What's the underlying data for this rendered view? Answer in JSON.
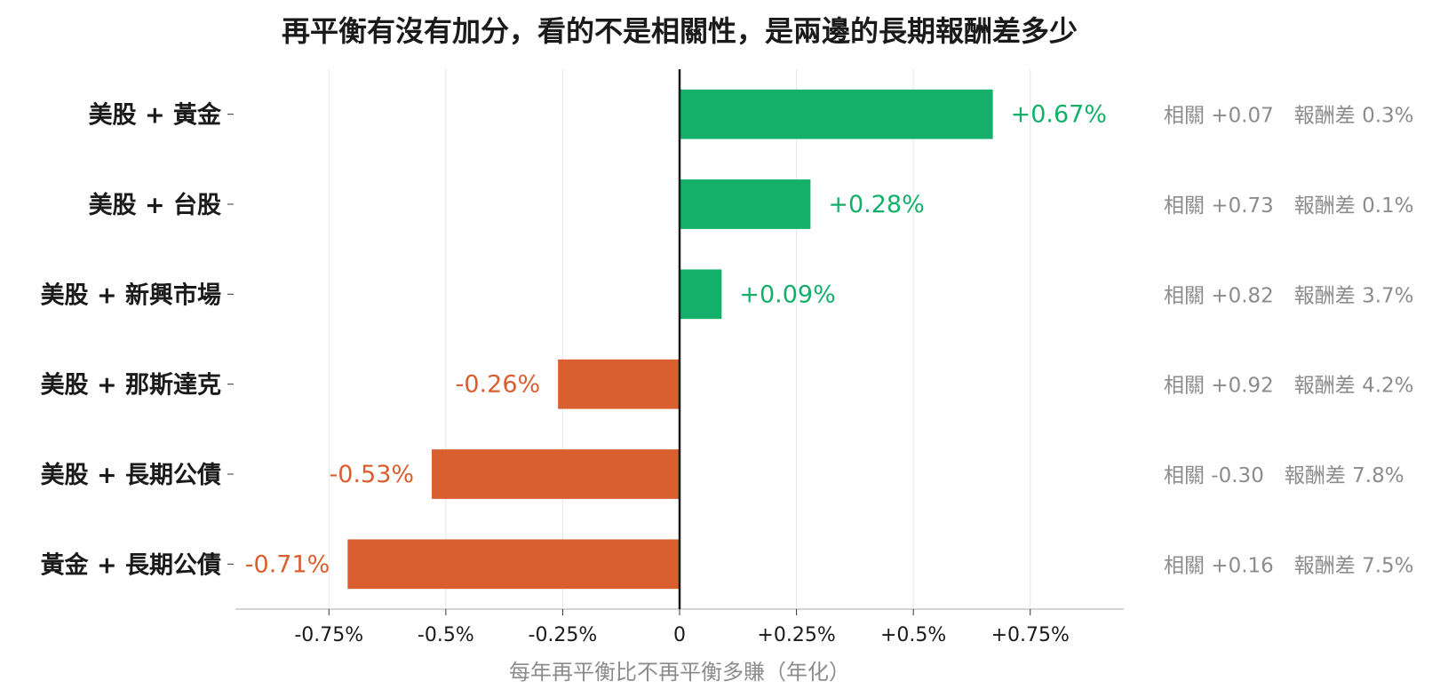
{
  "chart_data": {
    "type": "bar",
    "orientation": "horizontal",
    "title": "再平衡有沒有加分，看的不是相關性，是兩邊的長期報酬差多少",
    "xlabel": "每年再平衡比不再平衡多賺（年化）",
    "ylabel": "",
    "xlim": [
      -0.95,
      0.95
    ],
    "x_ticks": [
      -0.75,
      -0.5,
      -0.25,
      0,
      0.25,
      0.5,
      0.75
    ],
    "x_tick_labels": [
      "-0.75%",
      "-0.5%",
      "-0.25%",
      "0",
      "+0.25%",
      "+0.5%",
      "+0.75%"
    ],
    "grid": "vertical",
    "categories": [
      "美股 + 黃金",
      "美股 + 台股",
      "美股 + 新興市場",
      "美股 + 那斯達克",
      "美股 + 長期公債",
      "黃金 + 長期公債"
    ],
    "values": [
      0.67,
      0.28,
      0.09,
      -0.26,
      -0.53,
      -0.71
    ],
    "value_labels": [
      "+0.67%",
      "+0.28%",
      "+0.09%",
      "-0.26%",
      "-0.53%",
      "-0.71%"
    ],
    "annotations": [
      "相關 +0.07　報酬差 0.3%",
      "相關 +0.73　報酬差 0.1%",
      "相關 +0.82　報酬差 3.7%",
      "相關 +0.92　報酬差 4.2%",
      "相關 -0.30　報酬差 7.8%",
      "相關 +0.16　報酬差 7.5%"
    ],
    "colors": {
      "positive": "#14b069",
      "negative": "#d95f30",
      "annotation": "#8c8c8c",
      "zero_line": "#1a1a1a",
      "grid": "#e6e6e6",
      "axis": "#bbbbbb"
    }
  }
}
